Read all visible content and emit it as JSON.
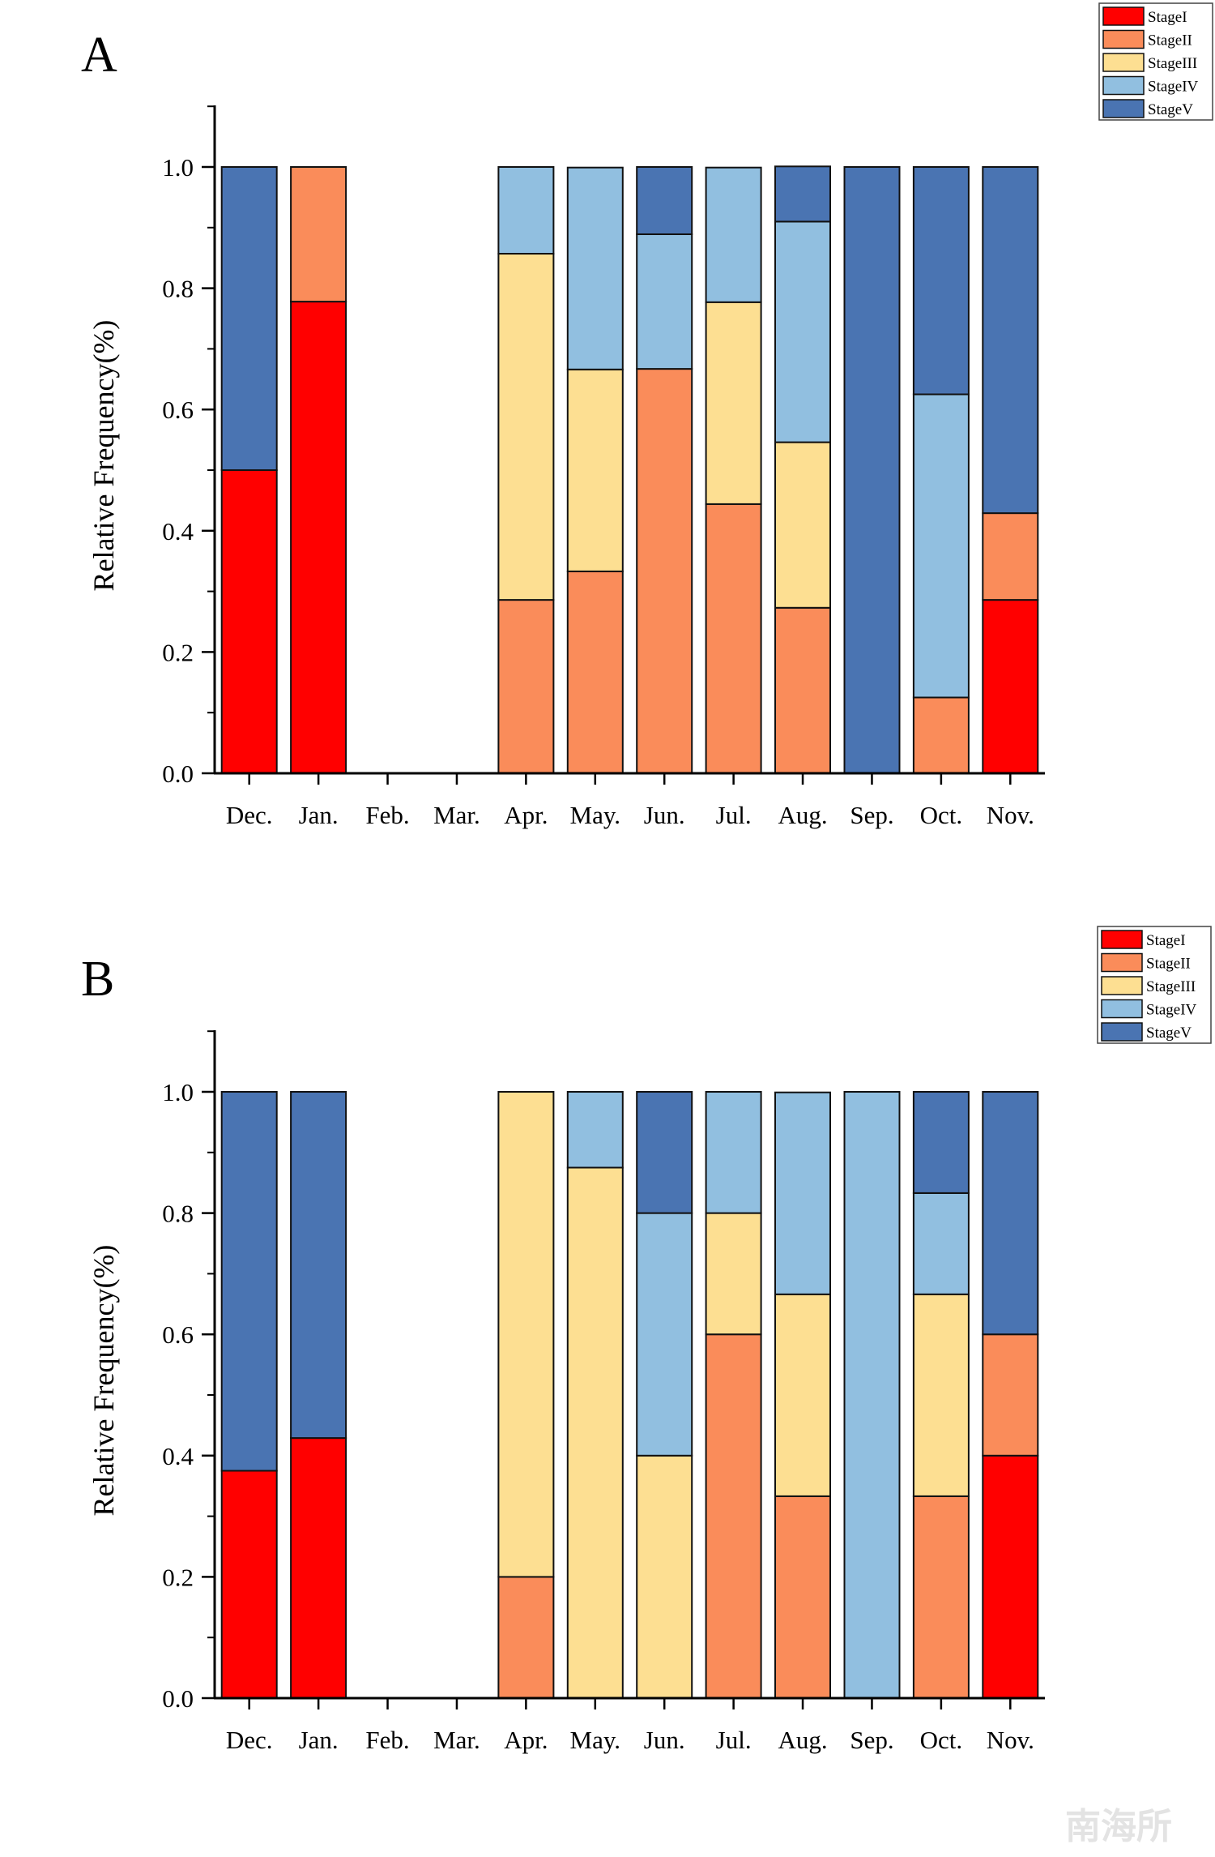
{
  "colors": {
    "StageI": "#ff0000",
    "StageII": "#fa8c5a",
    "StageIII": "#fddf92",
    "StageIV": "#91bfe0",
    "StageV": "#4a74b2"
  },
  "watermark": "南海所",
  "chart_data": [
    {
      "panel_label": "A",
      "type": "bar",
      "stacked": true,
      "ylabel": "Relative Frequency(%)",
      "ylim": [
        0,
        1.1
      ],
      "yticks": [
        "0.0",
        "0.2",
        "0.4",
        "0.6",
        "0.8",
        "1.0"
      ],
      "categories": [
        "Dec.",
        "Jan.",
        "Feb.",
        "Mar.",
        "Apr.",
        "May.",
        "Jun.",
        "Jul.",
        "Aug.",
        "Sep.",
        "Oct.",
        "Nov."
      ],
      "legend": [
        "StageI",
        "StageII",
        "StageIII",
        "StageIV",
        "StageV"
      ],
      "legend_position": "top-right",
      "series": [
        {
          "name": "StageI",
          "values": [
            0.5,
            0.778,
            0,
            0,
            0,
            0,
            0,
            0,
            0,
            0,
            0,
            0.286
          ]
        },
        {
          "name": "StageII",
          "values": [
            0,
            0.222,
            0,
            0,
            0.286,
            0.333,
            0.667,
            0.444,
            0.273,
            0,
            0.125,
            0.143
          ]
        },
        {
          "name": "StageIII",
          "values": [
            0,
            0,
            0,
            0,
            0.571,
            0.333,
            0,
            0.333,
            0.273,
            0,
            0,
            0
          ]
        },
        {
          "name": "StageIV",
          "values": [
            0,
            0,
            0,
            0,
            0.143,
            0.333,
            0.222,
            0.222,
            0.364,
            0,
            0.5,
            0
          ]
        },
        {
          "name": "StageV",
          "values": [
            0.5,
            0,
            0,
            0,
            0,
            0,
            0.111,
            0,
            0.091,
            1.0,
            0.375,
            0.571
          ]
        }
      ]
    },
    {
      "panel_label": "B",
      "type": "bar",
      "stacked": true,
      "ylabel": "Relative Frequency(%)",
      "ylim": [
        0,
        1.1
      ],
      "yticks": [
        "0.0",
        "0.2",
        "0.4",
        "0.6",
        "0.8",
        "1.0"
      ],
      "categories": [
        "Dec.",
        "Jan.",
        "Feb.",
        "Mar.",
        "Apr.",
        "May.",
        "Jun.",
        "Jul.",
        "Aug.",
        "Sep.",
        "Oct.",
        "Nov."
      ],
      "legend": [
        "StageI",
        "StageII",
        "StageIII",
        "StageIV",
        "StageV"
      ],
      "legend_position": "top-right",
      "series": [
        {
          "name": "StageI",
          "values": [
            0.375,
            0.429,
            0,
            0,
            0,
            0,
            0,
            0,
            0,
            0,
            0,
            0.4
          ]
        },
        {
          "name": "StageII",
          "values": [
            0,
            0,
            0,
            0,
            0.2,
            0,
            0,
            0.6,
            0.333,
            0,
            0.333,
            0.2
          ]
        },
        {
          "name": "StageIII",
          "values": [
            0,
            0,
            0,
            0,
            0.8,
            0.875,
            0.4,
            0.2,
            0.333,
            0,
            0.333,
            0
          ]
        },
        {
          "name": "StageIV",
          "values": [
            0,
            0,
            0,
            0,
            0,
            0.125,
            0.4,
            0.2,
            0.333,
            1.0,
            0.167,
            0
          ]
        },
        {
          "name": "StageV",
          "values": [
            0.625,
            0.571,
            0,
            0,
            0,
            0,
            0.2,
            0,
            0,
            0,
            0.167,
            0.4
          ]
        }
      ]
    }
  ]
}
